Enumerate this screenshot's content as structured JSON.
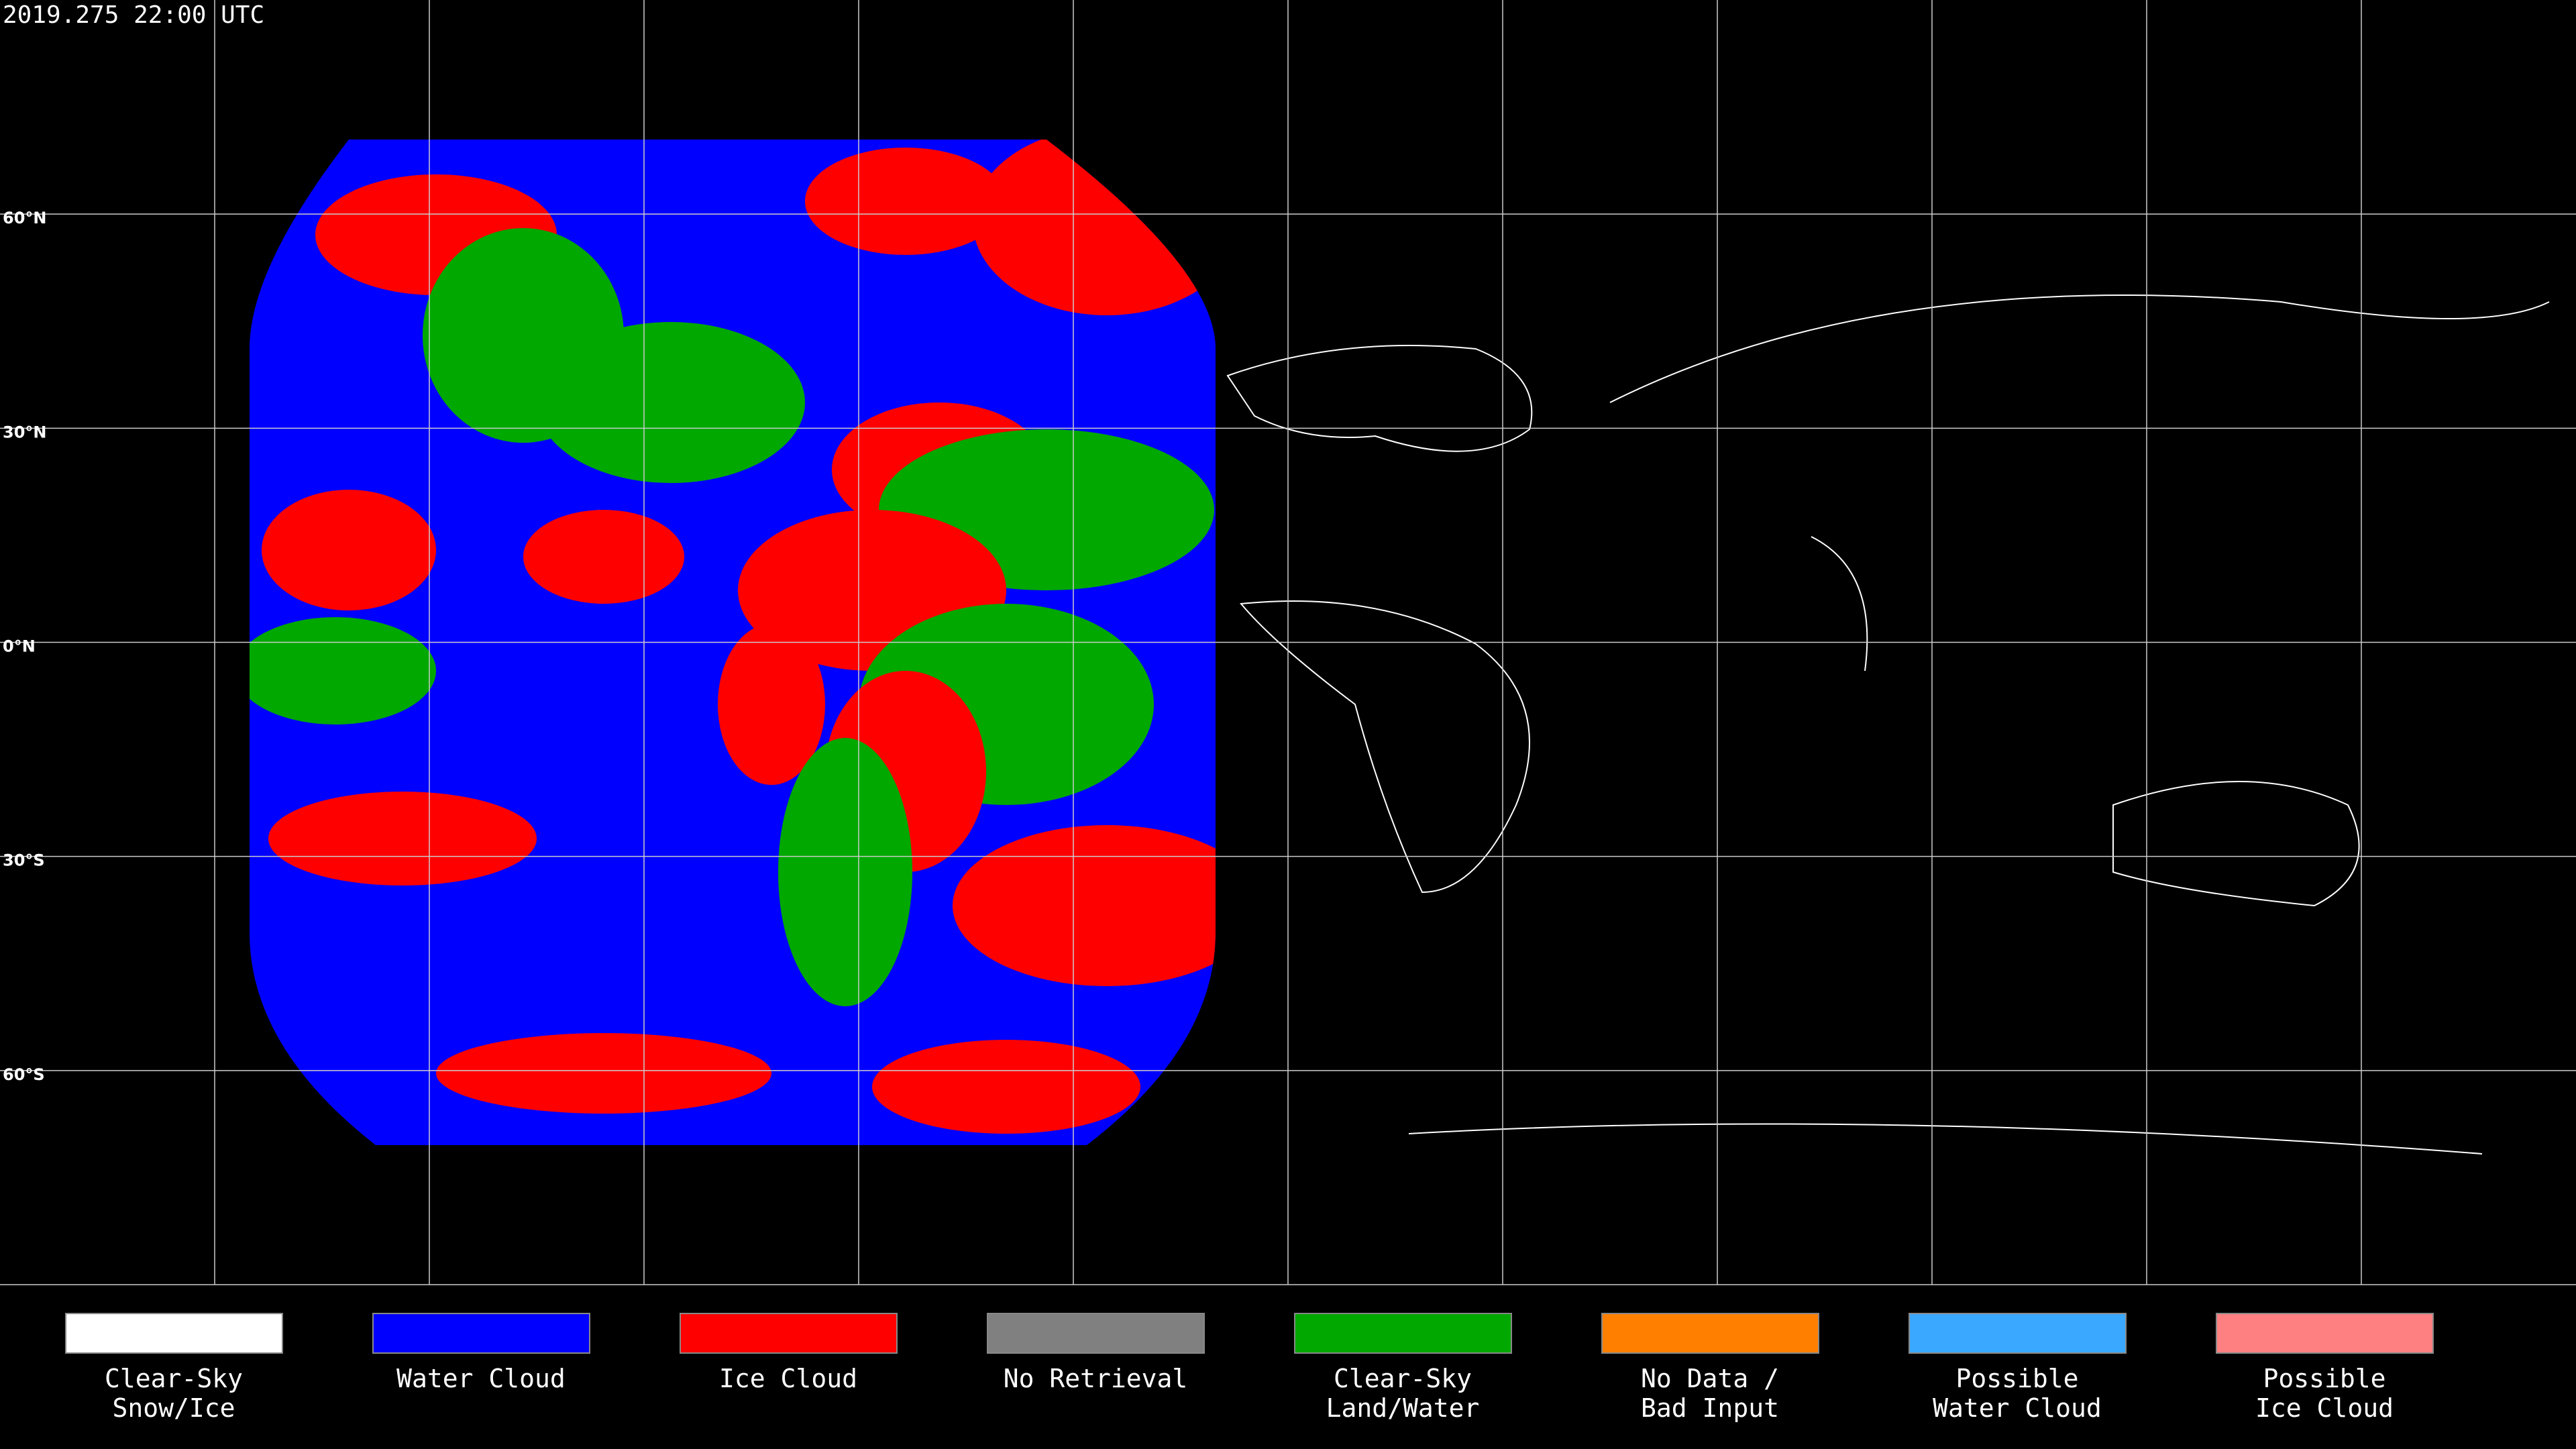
{
  "timestamp": "2019.275 22:00 UTC",
  "latitude_labels": [
    "60°N",
    "30°N",
    "0°N",
    "30°S",
    "60°S"
  ],
  "legend": [
    {
      "label": [
        "Clear-Sky",
        "Snow/Ice"
      ],
      "color": "#ffffff"
    },
    {
      "label": [
        "Water Cloud"
      ],
      "color": "#0000ff"
    },
    {
      "label": [
        "Ice Cloud"
      ],
      "color": "#ff0000"
    },
    {
      "label": [
        "No Retrieval"
      ],
      "color": "#808080"
    },
    {
      "label": [
        "Clear-Sky",
        "Land/Water"
      ],
      "color": "#00a800"
    },
    {
      "label": [
        "No Data /",
        "Bad Input"
      ],
      "color": "#ff8000"
    },
    {
      "label": [
        "Possible",
        "Water Cloud"
      ],
      "color": "#3aa8ff"
    },
    {
      "label": [
        "Possible",
        "Ice Cloud"
      ],
      "color": "#ff8080"
    }
  ]
}
